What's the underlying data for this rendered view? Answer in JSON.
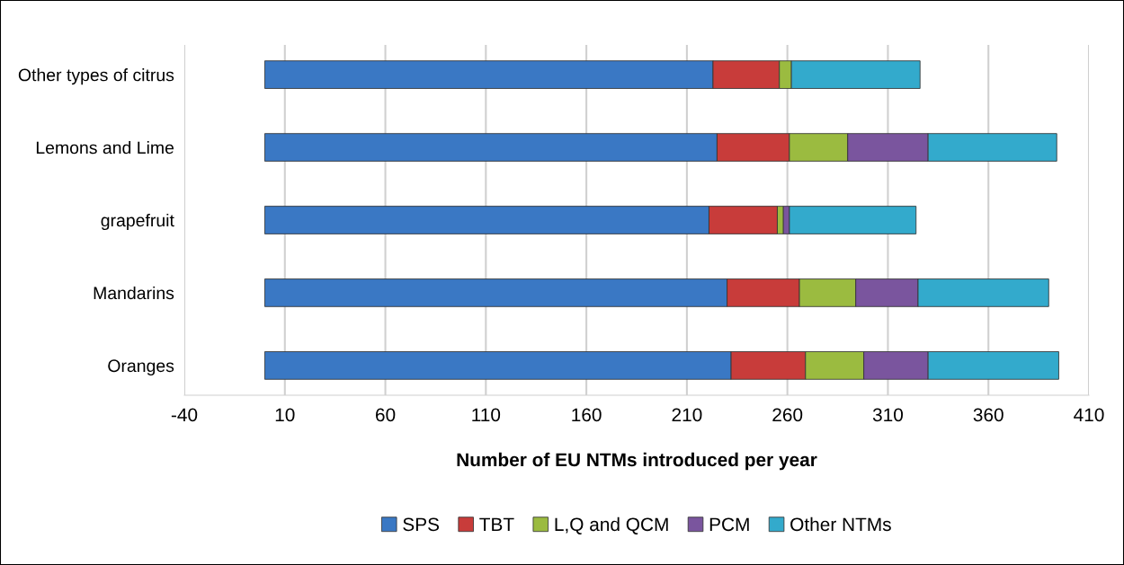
{
  "chart_data": {
    "type": "bar",
    "orientation": "horizontal",
    "stacked": true,
    "xlabel": "Number of EU NTMs introduced per year",
    "categories": [
      "Other types of citrus",
      "Lemons and Lime",
      "grapefruit",
      "Mandarins",
      "Oranges"
    ],
    "series": [
      {
        "name": "SPS",
        "color": "#3a78c4",
        "values": [
          223,
          225,
          221,
          230,
          232
        ]
      },
      {
        "name": "TBT",
        "color": "#c83c3a",
        "values": [
          33,
          36,
          34,
          36,
          37
        ]
      },
      {
        "name": "L,Q and QCM",
        "color": "#9bbb40",
        "values": [
          6,
          29,
          3,
          28,
          29
        ]
      },
      {
        "name": "PCM",
        "color": "#7a559e",
        "values": [
          null,
          40,
          3,
          31,
          32
        ]
      },
      {
        "name": "Other NTMs",
        "color": "#33aacc",
        "values": [
          64,
          64,
          63,
          65,
          65
        ]
      }
    ],
    "xlim": [
      -40,
      410
    ],
    "xticks": [
      -40,
      10,
      60,
      110,
      160,
      210,
      260,
      310,
      360,
      410
    ],
    "grid": "x",
    "legend": "bottom"
  }
}
